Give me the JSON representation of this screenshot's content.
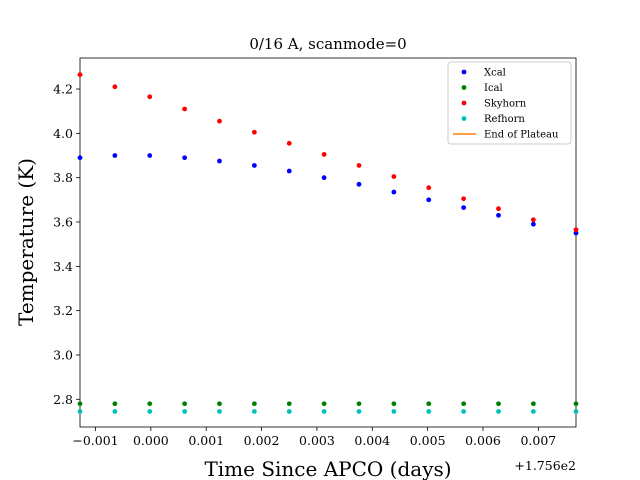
{
  "chart_data": {
    "type": "scatter",
    "title": "0/16 A, scanmode=0",
    "xlabel": "Time Since APCO (days)",
    "ylabel": "Temperature (K)",
    "x_offset_label": "+1.756e2",
    "x_offset": 175.6,
    "xlim": [
      -0.00128,
      0.00768
    ],
    "ylim": [
      2.675,
      4.34
    ],
    "x_ticks": [
      -0.001,
      0.0,
      0.001,
      0.002,
      0.003,
      0.004,
      0.005,
      0.006,
      0.007
    ],
    "x_tick_labels": [
      "−0.001",
      "0.000",
      "0.001",
      "0.002",
      "0.003",
      "0.004",
      "0.005",
      "0.006",
      "0.007"
    ],
    "y_ticks": [
      2.8,
      3.0,
      3.2,
      3.4,
      3.6,
      3.8,
      4.0,
      4.2
    ],
    "y_tick_labels": [
      "2.8",
      "3.0",
      "3.2",
      "3.4",
      "3.6",
      "3.8",
      "4.0",
      "4.2"
    ],
    "x": [
      -0.00128,
      -0.00065,
      -2e-05,
      0.00061,
      0.00124,
      0.00187,
      0.0025,
      0.00313,
      0.00376,
      0.00439,
      0.00502,
      0.00565,
      0.00628,
      0.00691,
      0.00768
    ],
    "series": [
      {
        "name": "Xcal",
        "color": "#0000ff",
        "y": [
          3.89,
          3.9,
          3.9,
          3.89,
          3.875,
          3.855,
          3.83,
          3.8,
          3.77,
          3.735,
          3.7,
          3.665,
          3.63,
          3.59,
          3.55
        ]
      },
      {
        "name": "Ical",
        "color": "#008000",
        "y": [
          2.78,
          2.78,
          2.78,
          2.78,
          2.78,
          2.78,
          2.78,
          2.78,
          2.78,
          2.78,
          2.78,
          2.78,
          2.78,
          2.78,
          2.78
        ]
      },
      {
        "name": "Skyhorn",
        "color": "#ff0000",
        "y": [
          4.265,
          4.21,
          4.165,
          4.11,
          4.055,
          4.005,
          3.955,
          3.905,
          3.855,
          3.805,
          3.755,
          3.705,
          3.66,
          3.61,
          3.565
        ]
      },
      {
        "name": "Refhorn",
        "color": "#00bfbf",
        "y": [
          2.745,
          2.745,
          2.745,
          2.745,
          2.745,
          2.745,
          2.745,
          2.745,
          2.745,
          2.745,
          2.745,
          2.745,
          2.745,
          2.745,
          2.745
        ]
      }
    ],
    "lines": [
      {
        "name": "End of Plateau",
        "color": "#ff7f0e"
      }
    ],
    "legend_position": "top-right",
    "grid": false
  }
}
